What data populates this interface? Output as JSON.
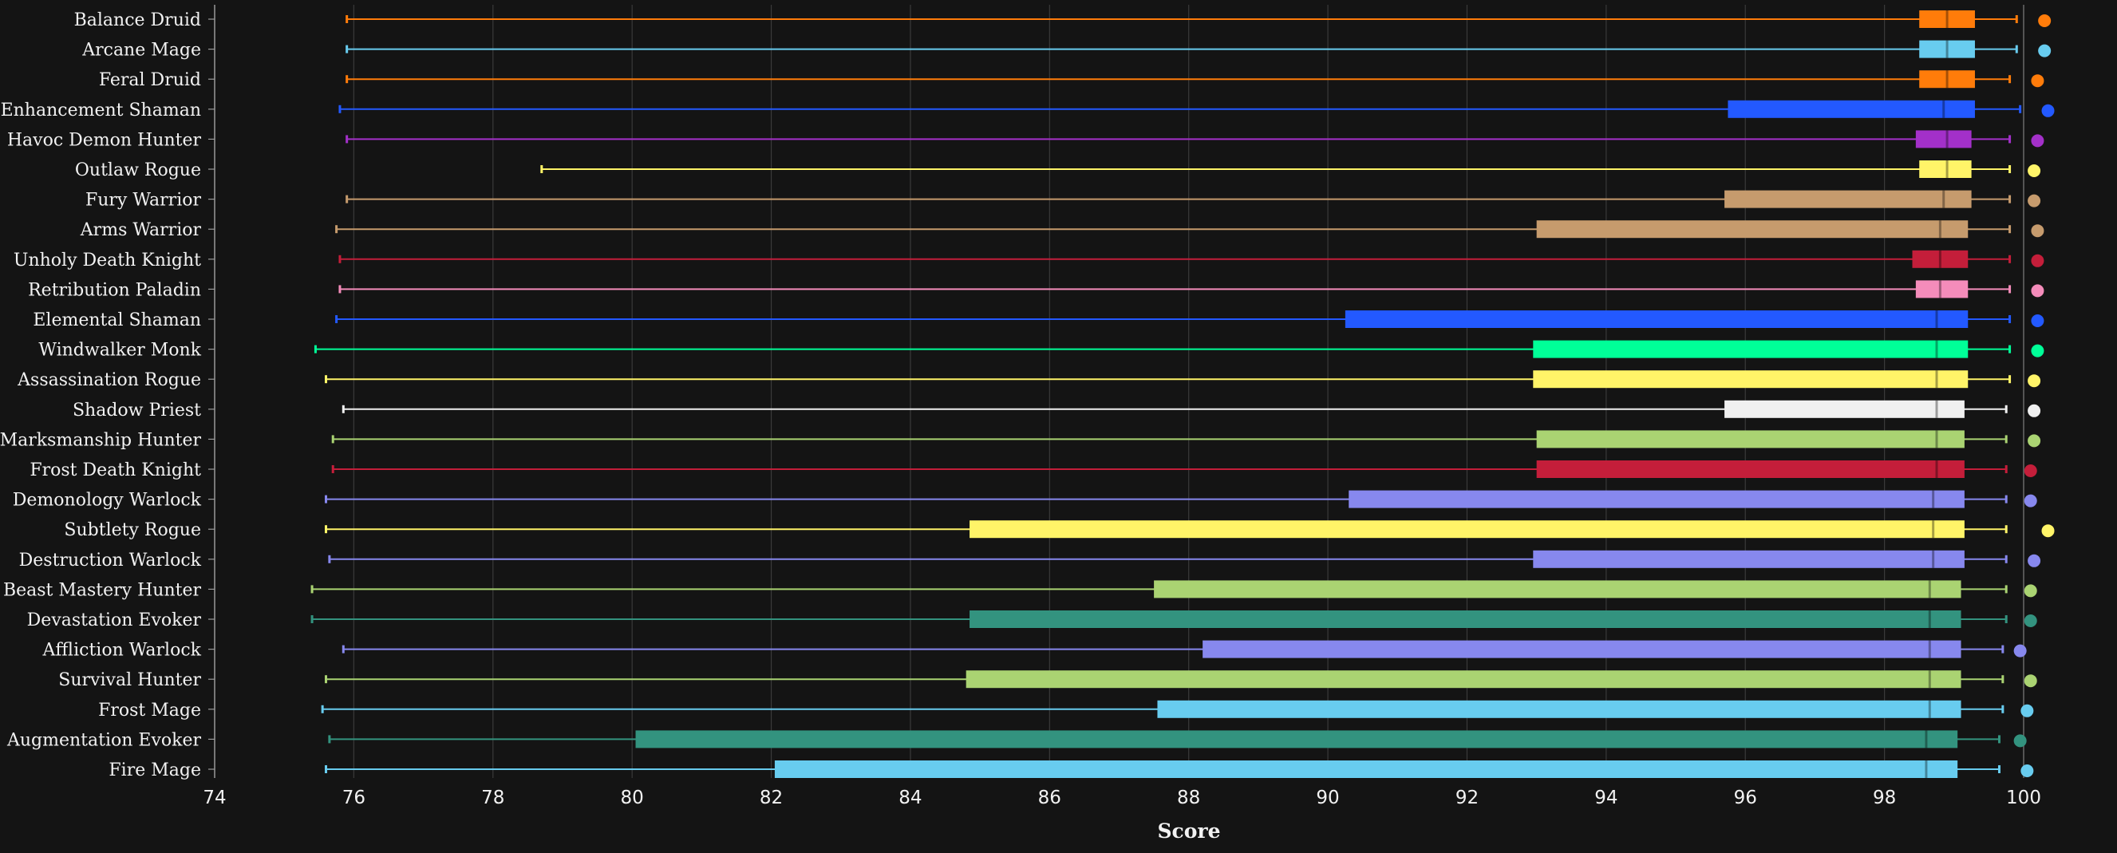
{
  "chart_data": {
    "type": "boxplot",
    "xlabel": "Score",
    "xlim": [
      74,
      100
    ],
    "xticks": [
      74,
      76,
      78,
      80,
      82,
      84,
      86,
      88,
      90,
      92,
      94,
      96,
      98,
      100
    ],
    "grid": true,
    "series": [
      {
        "name": "Balance Druid",
        "color": "#ff7c0a",
        "min": 75.9,
        "q1": 98.5,
        "median": 98.9,
        "q3": 99.3,
        "max": 99.9,
        "top": 100.3
      },
      {
        "name": "Arcane Mage",
        "color": "#68ccef",
        "min": 75.9,
        "q1": 98.5,
        "median": 98.9,
        "q3": 99.3,
        "max": 99.9,
        "top": 100.3
      },
      {
        "name": "Feral Druid",
        "color": "#ff7c0a",
        "min": 75.9,
        "q1": 98.5,
        "median": 98.9,
        "q3": 99.3,
        "max": 99.8,
        "top": 100.2
      },
      {
        "name": "Enhancement Shaman",
        "color": "#2359ff",
        "min": 75.8,
        "q1": 95.75,
        "median": 98.85,
        "q3": 99.3,
        "max": 99.95,
        "top": 100.35
      },
      {
        "name": "Havoc Demon Hunter",
        "color": "#a330c9",
        "min": 75.9,
        "q1": 98.45,
        "median": 98.9,
        "q3": 99.25,
        "max": 99.8,
        "top": 100.2
      },
      {
        "name": "Outlaw Rogue",
        "color": "#fff468",
        "min": 78.7,
        "q1": 98.5,
        "median": 98.9,
        "q3": 99.25,
        "max": 99.8,
        "top": 100.15
      },
      {
        "name": "Fury Warrior",
        "color": "#c69b6d",
        "min": 75.9,
        "q1": 95.7,
        "median": 98.85,
        "q3": 99.25,
        "max": 99.8,
        "top": 100.15
      },
      {
        "name": "Arms Warrior",
        "color": "#c69b6d",
        "min": 75.75,
        "q1": 93.0,
        "median": 98.8,
        "q3": 99.2,
        "max": 99.8,
        "top": 100.2
      },
      {
        "name": "Unholy Death Knight",
        "color": "#c41e3a",
        "min": 75.8,
        "q1": 98.4,
        "median": 98.8,
        "q3": 99.2,
        "max": 99.8,
        "top": 100.2
      },
      {
        "name": "Retribution Paladin",
        "color": "#f48cba",
        "min": 75.8,
        "q1": 98.45,
        "median": 98.8,
        "q3": 99.2,
        "max": 99.8,
        "top": 100.2
      },
      {
        "name": "Elemental Shaman",
        "color": "#2359ff",
        "min": 75.75,
        "q1": 90.25,
        "median": 98.75,
        "q3": 99.2,
        "max": 99.8,
        "top": 100.2
      },
      {
        "name": "Windwalker Monk",
        "color": "#00ff98",
        "min": 75.45,
        "q1": 92.95,
        "median": 98.75,
        "q3": 99.2,
        "max": 99.8,
        "top": 100.2
      },
      {
        "name": "Assassination Rogue",
        "color": "#fff468",
        "min": 75.6,
        "q1": 92.95,
        "median": 98.75,
        "q3": 99.2,
        "max": 99.8,
        "top": 100.15
      },
      {
        "name": "Shadow Priest",
        "color": "#f0f0f0",
        "min": 75.85,
        "q1": 95.7,
        "median": 98.75,
        "q3": 99.15,
        "max": 99.75,
        "top": 100.15
      },
      {
        "name": "Marksmanship Hunter",
        "color": "#aad372",
        "min": 75.7,
        "q1": 93.0,
        "median": 98.75,
        "q3": 99.15,
        "max": 99.75,
        "top": 100.15
      },
      {
        "name": "Frost Death Knight",
        "color": "#c41e3a",
        "min": 75.7,
        "q1": 93.0,
        "median": 98.75,
        "q3": 99.15,
        "max": 99.75,
        "top": 100.1
      },
      {
        "name": "Demonology Warlock",
        "color": "#8788ee",
        "min": 75.6,
        "q1": 90.3,
        "median": 98.7,
        "q3": 99.15,
        "max": 99.75,
        "top": 100.1
      },
      {
        "name": "Subtlety Rogue",
        "color": "#fff468",
        "min": 75.6,
        "q1": 84.85,
        "median": 98.7,
        "q3": 99.15,
        "max": 99.75,
        "top": 100.35
      },
      {
        "name": "Destruction Warlock",
        "color": "#8788ee",
        "min": 75.65,
        "q1": 92.95,
        "median": 98.7,
        "q3": 99.15,
        "max": 99.75,
        "top": 100.15
      },
      {
        "name": "Beast Mastery Hunter",
        "color": "#aad372",
        "min": 75.4,
        "q1": 87.5,
        "median": 98.65,
        "q3": 99.1,
        "max": 99.75,
        "top": 100.1
      },
      {
        "name": "Devastation Evoker",
        "color": "#33937f",
        "min": 75.4,
        "q1": 84.85,
        "median": 98.65,
        "q3": 99.1,
        "max": 99.75,
        "top": 100.1
      },
      {
        "name": "Affliction Warlock",
        "color": "#8788ee",
        "min": 75.85,
        "q1": 88.2,
        "median": 98.65,
        "q3": 99.1,
        "max": 99.7,
        "top": 99.95
      },
      {
        "name": "Survival Hunter",
        "color": "#aad372",
        "min": 75.6,
        "q1": 84.8,
        "median": 98.65,
        "q3": 99.1,
        "max": 99.7,
        "top": 100.1
      },
      {
        "name": "Frost Mage",
        "color": "#68ccef",
        "min": 75.55,
        "q1": 87.55,
        "median": 98.65,
        "q3": 99.1,
        "max": 99.7,
        "top": 100.05
      },
      {
        "name": "Augmentation Evoker",
        "color": "#33937f",
        "min": 75.65,
        "q1": 80.05,
        "median": 98.6,
        "q3": 99.05,
        "max": 99.65,
        "top": 99.95
      },
      {
        "name": "Fire Mage",
        "color": "#68ccef",
        "min": 75.6,
        "q1": 82.05,
        "median": 98.6,
        "q3": 99.05,
        "max": 99.65,
        "top": 100.05
      }
    ]
  }
}
